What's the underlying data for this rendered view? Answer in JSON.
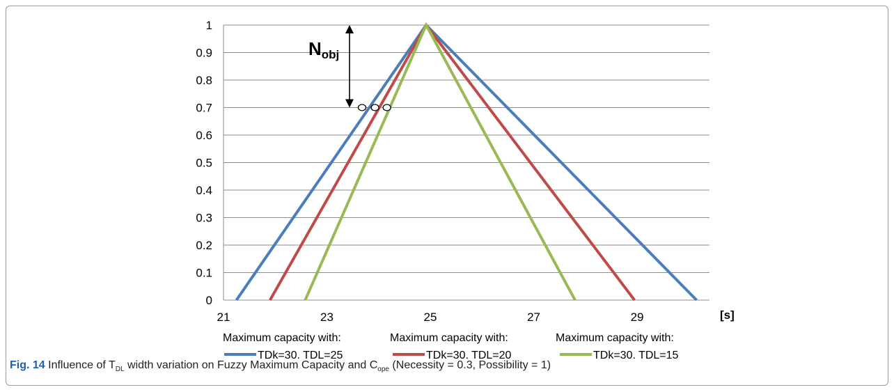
{
  "chart_data": {
    "type": "line",
    "x_unit_label": "[s]",
    "xlim": [
      21,
      30.4
    ],
    "ylim": [
      0,
      1
    ],
    "x_ticks": [
      21,
      23,
      25,
      27,
      29
    ],
    "y_ticks": [
      0,
      0.1,
      0.2,
      0.3,
      0.4,
      0.5,
      0.6,
      0.7,
      0.8,
      0.9,
      1
    ],
    "grid": "horizontal",
    "series": [
      {
        "name": "TDk=30, TDL=25",
        "legend_prefix": "Maximum capacity with:",
        "color": "#4a7ebb",
        "x": [
          21.25,
          24.92,
          30.15
        ],
        "y": [
          0,
          1,
          0
        ]
      },
      {
        "name": "TDk=30, TDL=20",
        "legend_prefix": "Maximum capacity with:",
        "color": "#be4b48",
        "x": [
          21.9,
          24.92,
          28.95
        ],
        "y": [
          0,
          1,
          0
        ]
      },
      {
        "name": "TDk=30, TDL=15",
        "legend_prefix": "Maximum capacity with:",
        "color": "#98b954",
        "x": [
          22.58,
          24.92,
          27.8
        ],
        "y": [
          0,
          1,
          0
        ]
      }
    ],
    "markers": [
      {
        "x": 23.68,
        "y": 0.7
      },
      {
        "x": 23.93,
        "y": 0.7
      },
      {
        "x": 24.16,
        "y": 0.7
      }
    ],
    "annotation": {
      "label_main": "N",
      "label_sub": "obj",
      "x": 23.8,
      "y_from": 1,
      "y_to": 0.7
    }
  },
  "caption": {
    "fig": "Fig. 14",
    "t1": " Influence of T",
    "s1": "DL",
    "t2": " width variation on Fuzzy Maximum Capacity and C",
    "s2": "ope",
    "t3": " (Necessity = 0.3, Possibility = 1)"
  }
}
